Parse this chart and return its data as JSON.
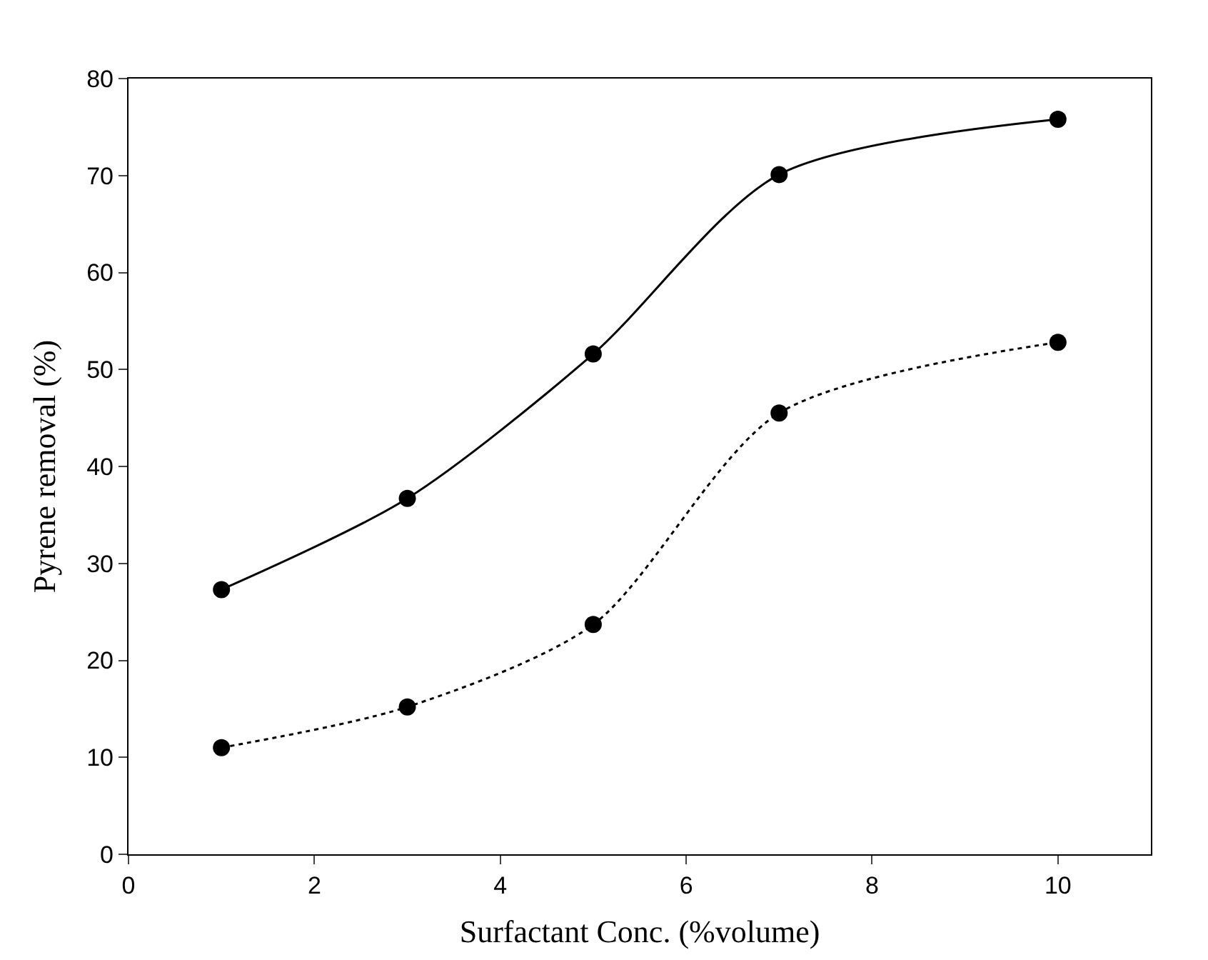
{
  "chart_data": {
    "type": "line",
    "xlabel": "Surfactant Conc. (%volume)",
    "ylabel": "Pyrene removal (%)",
    "x": [
      1,
      3,
      5,
      7,
      10
    ],
    "series": [
      {
        "color": "#000000",
        "line_style": "solid",
        "values": [
          27.3,
          36.7,
          51.6,
          70.1,
          75.8
        ]
      },
      {
        "color": "#000000",
        "line_style": "dotted",
        "values": [
          11.0,
          15.2,
          23.7,
          45.5,
          52.8
        ]
      }
    ],
    "xlim": [
      0,
      11
    ],
    "xticks": [
      0,
      2,
      4,
      6,
      8,
      10
    ],
    "ylim": [
      0,
      80
    ],
    "yticks": [
      0,
      10,
      20,
      30,
      40,
      50,
      60,
      70,
      80
    ],
    "marker": "circle"
  }
}
